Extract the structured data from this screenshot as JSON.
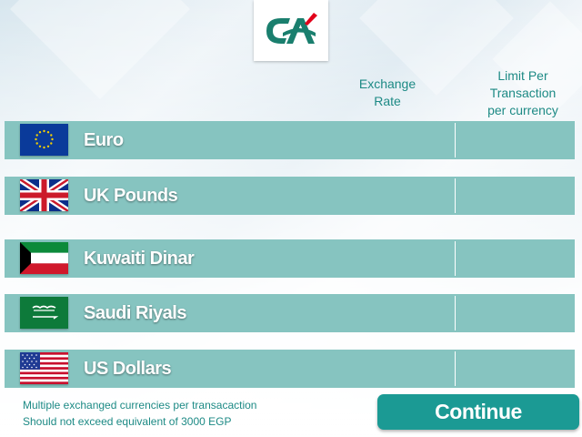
{
  "colors": {
    "accent": "#1d8a85",
    "row": "#86c4c0",
    "button": "#1b9a94",
    "logo_green": "#1a7f6e",
    "logo_red": "#e2001a"
  },
  "logo": {
    "icon": "credit-agricole-logo-icon"
  },
  "headers": {
    "exchange_rate": "Exchange Rate",
    "limit_line1": "Limit Per",
    "limit_line2": "Transaction",
    "limit_line3": "per currency"
  },
  "currencies": [
    {
      "label": "Euro",
      "flag": "eu-flag-icon"
    },
    {
      "label": "UK Pounds",
      "flag": "uk-flag-icon"
    },
    {
      "label": "Kuwaiti Dinar",
      "flag": "kuwait-flag-icon"
    },
    {
      "label": "Saudi Riyals",
      "flag": "saudi-flag-icon"
    },
    {
      "label": "US Dollars",
      "flag": "us-flag-icon"
    }
  ],
  "note": {
    "line1": "Multiple exchanged currencies per transacaction",
    "line2": "Should not exceed equivalent of 3000 EGP"
  },
  "continue_label": "Continue"
}
